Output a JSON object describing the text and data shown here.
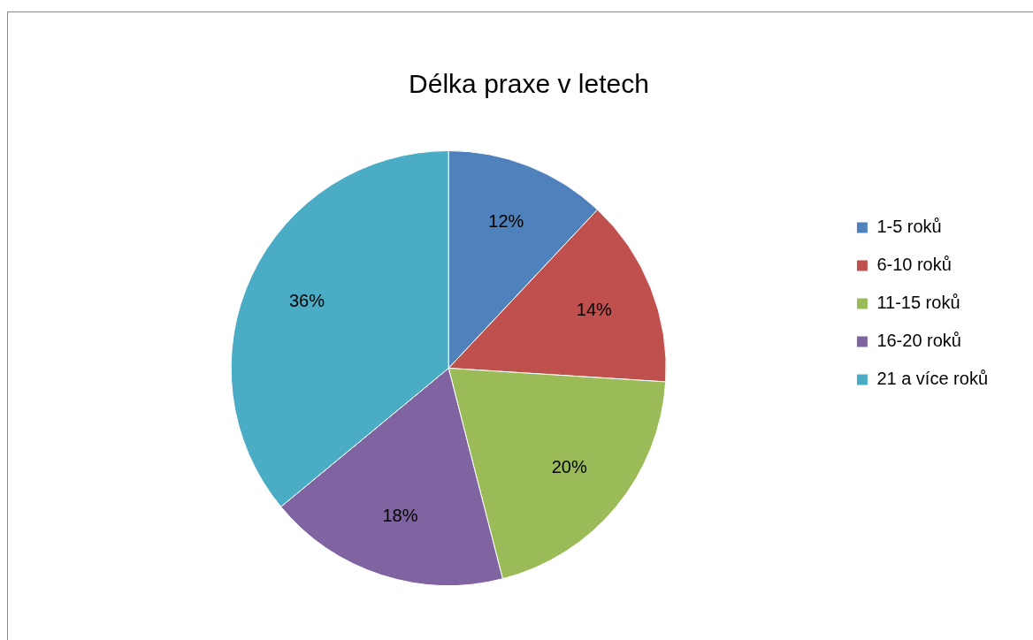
{
  "chart_data": {
    "type": "pie",
    "title": "Délka praxe v letech",
    "categories": [
      "1-5 roků",
      "6-10 roků",
      "11-15 roků",
      "16-20 roků",
      "21 a více roků"
    ],
    "values": [
      12,
      14,
      20,
      18,
      36
    ],
    "colors": [
      "#4f81bd",
      "#c0504d",
      "#9bbb59",
      "#8064a2",
      "#4bacc6"
    ],
    "value_labels": [
      "12%",
      "14%",
      "20%",
      "18%",
      "36%"
    ],
    "legend": "right"
  }
}
